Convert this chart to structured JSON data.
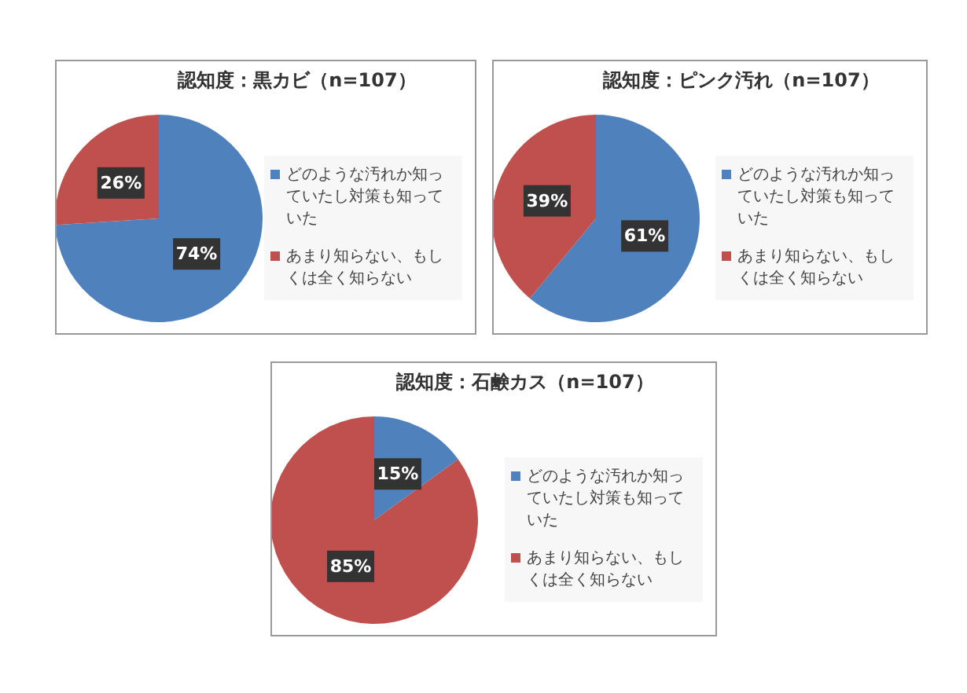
{
  "chart_data": [
    {
      "type": "pie",
      "title": "認知度：黒カビ（n=107）",
      "categories": [
        "どのような汚れか知っていたし対策も知っていた",
        "あまり知らない、もしくは全く知らない"
      ],
      "values": [
        74,
        26
      ],
      "colors": [
        "#4f81bd",
        "#c0504d"
      ],
      "value_labels": [
        "74%",
        "26%"
      ],
      "legend": "right"
    },
    {
      "type": "pie",
      "title": "認知度：ピンク汚れ（n=107）",
      "categories": [
        "どのような汚れか知っていたし対策も知っていた",
        "あまり知らない、もしくは全く知らない"
      ],
      "values": [
        61,
        39
      ],
      "colors": [
        "#4f81bd",
        "#c0504d"
      ],
      "value_labels": [
        "61%",
        "39%"
      ],
      "legend": "right"
    },
    {
      "type": "pie",
      "title": "認知度：石鹸カス（n=107）",
      "categories": [
        "どのような汚れか知っていたし対策も知っていた",
        "あまり知らない、もしくは全く知らない"
      ],
      "values": [
        15,
        85
      ],
      "colors": [
        "#4f81bd",
        "#c0504d"
      ],
      "value_labels": [
        "15%",
        "85%"
      ],
      "legend": "right"
    }
  ]
}
